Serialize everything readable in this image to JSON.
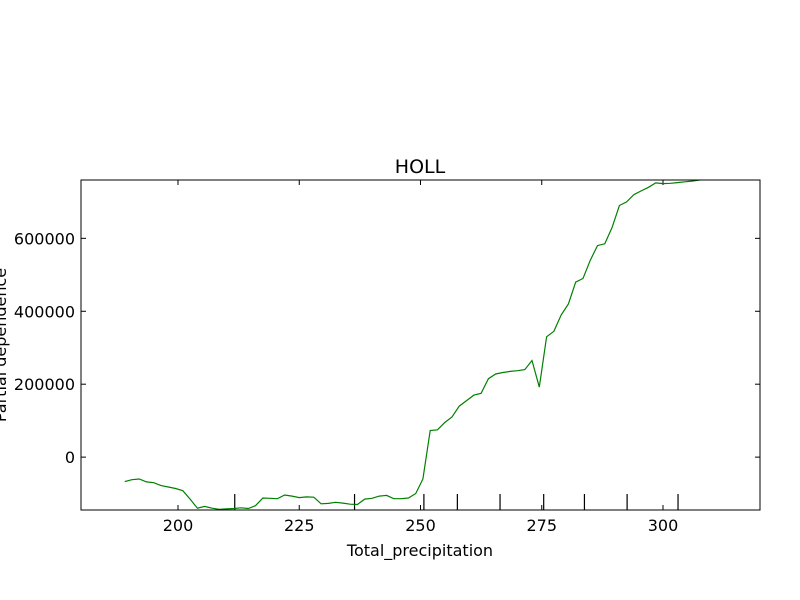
{
  "chart_data": {
    "type": "line",
    "title": "HOLL",
    "xlabel": "Total_precipitation",
    "ylabel": "Partial dependence",
    "xlim": [
      180,
      320
    ],
    "ylim": [
      -145000,
      760000
    ],
    "x_ticks": [
      200,
      225,
      250,
      275,
      300
    ],
    "y_ticks": [
      0,
      200000,
      400000,
      600000
    ],
    "x_tick_labels": [
      "200",
      "225",
      "250",
      "275",
      "300"
    ],
    "y_tick_labels": [
      "0",
      "200000",
      "400000",
      "600000"
    ],
    "deciles": [
      211.7,
      236.4,
      250.7,
      257.6,
      266.4,
      275.4,
      283.8,
      292.6,
      303.1
    ],
    "grid": false,
    "series": [
      {
        "color": "#008000",
        "x": [
          189.0,
          190.5,
          192.0,
          193.5,
          195.0,
          196.5,
          198.0,
          199.5,
          201.0,
          202.5,
          204.0,
          205.5,
          207.0,
          208.5,
          210.0,
          211.5,
          213.0,
          214.5,
          216.0,
          217.5,
          219.0,
          220.5,
          222.0,
          223.5,
          225.0,
          226.5,
          228.0,
          229.5,
          231.0,
          232.5,
          234.0,
          235.5,
          237.0,
          238.5,
          240.0,
          241.5,
          243.0,
          244.5,
          246.0,
          247.5,
          249.0,
          250.5,
          252.0,
          253.5,
          255.0,
          256.5,
          258.0,
          259.5,
          261.0,
          262.5,
          264.0,
          265.5,
          267.0,
          268.5,
          270.0,
          271.5,
          273.0,
          274.5,
          276.0,
          277.5,
          279.0,
          280.5,
          282.0,
          283.5,
          285.0,
          286.5,
          288.0,
          289.5,
          291.0,
          292.5,
          294.0,
          295.5,
          297.0,
          298.5,
          300.0,
          301.5,
          303.0,
          304.5,
          306.0,
          307.5,
          309.0
        ],
        "values": [
          -67000,
          -62000,
          -60000,
          -68000,
          -70000,
          -78000,
          -82000,
          -86000,
          -92000,
          -115000,
          -140000,
          -135000,
          -140000,
          -143000,
          -142000,
          -141000,
          -139000,
          -141000,
          -133000,
          -112000,
          -113000,
          -114000,
          -104000,
          -107000,
          -111000,
          -109000,
          -110000,
          -128000,
          -127000,
          -124000,
          -126000,
          -129000,
          -130000,
          -115000,
          -113000,
          -107000,
          -105000,
          -114000,
          -114000,
          -112000,
          -100000,
          -60000,
          73000,
          75000,
          95000,
          110000,
          140000,
          155000,
          170000,
          175000,
          215000,
          228000,
          232000,
          235000,
          237000,
          240000,
          265000,
          192000,
          330000,
          345000,
          390000,
          420000,
          480000,
          490000,
          540000,
          580000,
          585000,
          630000,
          690000,
          700000,
          720000,
          730000,
          740000,
          752000,
          750000,
          751000,
          753000,
          755000,
          757000,
          760000,
          762000
        ]
      }
    ]
  }
}
